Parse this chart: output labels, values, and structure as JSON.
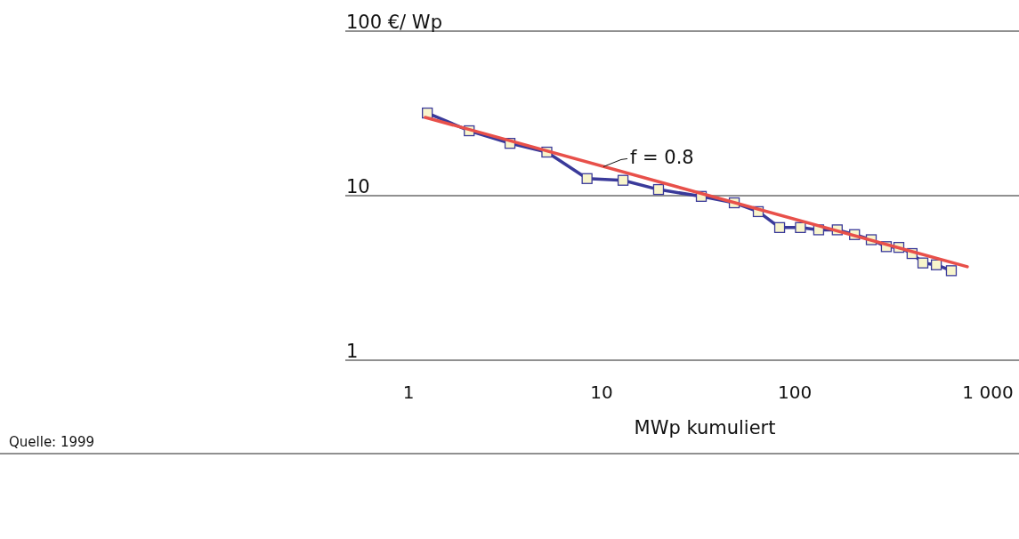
{
  "chart_data": {
    "type": "line",
    "xlabel": "MWp kumuliert",
    "log": "xy",
    "grid": "y",
    "marker": "square",
    "line_style": "solid",
    "xlim": [
      0.47,
      1450
    ],
    "xticks": [
      1,
      10,
      100,
      {
        "value": 1000,
        "label": "1 000"
      }
    ],
    "ylim": [
      1,
      100
    ],
    "yticks": [
      1,
      10,
      {
        "value": 100,
        "label": "100 €/ Wp"
      }
    ],
    "series": [
      {
        "color": "#3a3a9a",
        "x": [
          1.25,
          2.06,
          3.35,
          5.2,
          8.4,
          12.9,
          19.7,
          32.8,
          48.6,
          64.7,
          83.5,
          107,
          133,
          166,
          204,
          249,
          298,
          346,
          405,
          461,
          541,
          647
        ],
        "values": [
          31.8,
          24.8,
          20.8,
          18.4,
          12.7,
          12.4,
          10.9,
          9.9,
          9.05,
          8.0,
          6.4,
          6.4,
          6.2,
          6.2,
          5.8,
          5.4,
          4.9,
          4.85,
          4.45,
          3.9,
          3.8,
          3.5
        ]
      },
      {
        "type": "line",
        "marker": "none",
        "color": "#e8504a",
        "x": [
          1.22,
          783
        ],
        "values": [
          29.9,
          3.7
        ]
      }
    ],
    "annotations": [
      {
        "text": "f = 0.8",
        "x": 10.2,
        "y": 15
      },
      "Quelle: 1999"
    ]
  }
}
